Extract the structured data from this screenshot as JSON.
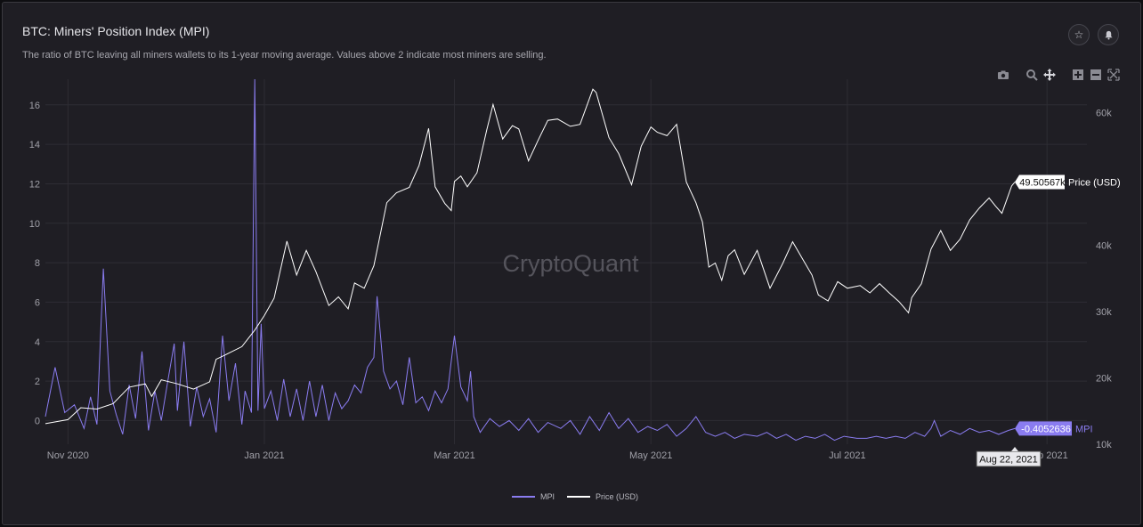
{
  "header": {
    "title": "BTC: Miners' Position Index (MPI)",
    "subtitle": "The ratio of BTC leaving all miners wallets to its 1-year moving average. Values above 2 indicate most miners are selling.",
    "favorite_icon": "☆",
    "alert_icon": "🔔"
  },
  "toolbar": {
    "icons": [
      "camera-icon",
      "zoom-icon",
      "pan-icon",
      "zoom-in-icon",
      "zoom-out-icon",
      "autoscale-icon"
    ]
  },
  "watermark": "CryptoQuant",
  "colors": {
    "mpi": "#8a7cf0",
    "price": "#ffffff",
    "background": "#1f1e24",
    "grid": "#2e2d34",
    "axis_text": "#a0a0a8"
  },
  "chart_data": {
    "type": "line",
    "x_start": "2020-10-25",
    "x_end": "2021-08-22",
    "x_ticks": [
      {
        "date": "2020-11-01",
        "label": "Nov 2020"
      },
      {
        "date": "2021-01-01",
        "label": "Jan 2021"
      },
      {
        "date": "2021-03-01",
        "label": "Mar 2021"
      },
      {
        "date": "2021-05-01",
        "label": "May 2021"
      },
      {
        "date": "2021-07-01",
        "label": "Jul 2021"
      },
      {
        "date": "2021-09-01",
        "label": "Sep 2021"
      }
    ],
    "y_left": {
      "min": -1.2,
      "max": 17.3,
      "ticks": [
        0,
        2,
        4,
        6,
        8,
        10,
        12,
        14,
        16
      ]
    },
    "y_right": {
      "min": 10000,
      "max": 65000,
      "ticks": [
        10000,
        20000,
        30000,
        40000,
        60000
      ],
      "tick_labels": [
        "10k",
        "20k",
        "30k",
        "40k",
        "60k"
      ]
    },
    "series": [
      {
        "name": "MPI",
        "axis": "left",
        "points": [
          [
            "2020-10-25",
            0.2
          ],
          [
            "2020-10-28",
            2.7
          ],
          [
            "2020-10-31",
            0.4
          ],
          [
            "2020-11-03",
            0.8
          ],
          [
            "2020-11-06",
            -0.4
          ],
          [
            "2020-11-08",
            1.2
          ],
          [
            "2020-11-10",
            -0.2
          ],
          [
            "2020-11-12",
            7.7
          ],
          [
            "2020-11-14",
            1.5
          ],
          [
            "2020-11-16",
            0.3
          ],
          [
            "2020-11-18",
            -0.7
          ],
          [
            "2020-11-20",
            1.8
          ],
          [
            "2020-11-22",
            0.1
          ],
          [
            "2020-11-24",
            3.5
          ],
          [
            "2020-11-26",
            -0.5
          ],
          [
            "2020-11-28",
            1.5
          ],
          [
            "2020-11-30",
            0.0
          ],
          [
            "2020-12-02",
            2.0
          ],
          [
            "2020-12-04",
            3.9
          ],
          [
            "2020-12-05",
            0.5
          ],
          [
            "2020-12-07",
            4.0
          ],
          [
            "2020-12-09",
            -0.3
          ],
          [
            "2020-12-11",
            1.7
          ],
          [
            "2020-12-13",
            0.2
          ],
          [
            "2020-12-15",
            1.1
          ],
          [
            "2020-12-17",
            -0.6
          ],
          [
            "2020-12-19",
            4.3
          ],
          [
            "2020-12-21",
            1.0
          ],
          [
            "2020-12-23",
            2.9
          ],
          [
            "2020-12-25",
            -0.2
          ],
          [
            "2020-12-26",
            1.5
          ],
          [
            "2020-12-28",
            0.4
          ],
          [
            "2020-12-29",
            17.3
          ],
          [
            "2020-12-30",
            0.5
          ],
          [
            "2020-12-31",
            4.9
          ],
          [
            "2021-01-01",
            0.6
          ],
          [
            "2021-01-03",
            1.5
          ],
          [
            "2021-01-05",
            0.0
          ],
          [
            "2021-01-07",
            2.1
          ],
          [
            "2021-01-09",
            0.2
          ],
          [
            "2021-01-11",
            1.6
          ],
          [
            "2021-01-13",
            0.0
          ],
          [
            "2021-01-15",
            2.0
          ],
          [
            "2021-01-17",
            0.2
          ],
          [
            "2021-01-19",
            1.8
          ],
          [
            "2021-01-21",
            0.0
          ],
          [
            "2021-01-23",
            1.4
          ],
          [
            "2021-01-25",
            0.6
          ],
          [
            "2021-01-27",
            1.0
          ],
          [
            "2021-01-29",
            1.8
          ],
          [
            "2021-01-31",
            1.4
          ],
          [
            "2021-02-02",
            2.7
          ],
          [
            "2021-02-04",
            3.2
          ],
          [
            "2021-02-05",
            6.3
          ],
          [
            "2021-02-07",
            2.5
          ],
          [
            "2021-02-09",
            1.6
          ],
          [
            "2021-02-11",
            2.0
          ],
          [
            "2021-02-13",
            0.8
          ],
          [
            "2021-02-15",
            3.2
          ],
          [
            "2021-02-17",
            0.9
          ],
          [
            "2021-02-19",
            1.2
          ],
          [
            "2021-02-21",
            0.5
          ],
          [
            "2021-02-23",
            1.5
          ],
          [
            "2021-02-25",
            0.9
          ],
          [
            "2021-02-27",
            1.6
          ],
          [
            "2021-02-28",
            3.0
          ],
          [
            "2021-03-01",
            4.3
          ],
          [
            "2021-03-03",
            1.7
          ],
          [
            "2021-03-05",
            1.0
          ],
          [
            "2021-03-06",
            2.5
          ],
          [
            "2021-03-07",
            0.2
          ],
          [
            "2021-03-09",
            -0.6
          ],
          [
            "2021-03-12",
            0.1
          ],
          [
            "2021-03-15",
            -0.3
          ],
          [
            "2021-03-18",
            0.0
          ],
          [
            "2021-03-21",
            -0.5
          ],
          [
            "2021-03-24",
            0.1
          ],
          [
            "2021-03-27",
            -0.6
          ],
          [
            "2021-03-30",
            -0.1
          ],
          [
            "2021-04-03",
            -0.4
          ],
          [
            "2021-04-06",
            0.0
          ],
          [
            "2021-04-09",
            -0.7
          ],
          [
            "2021-04-12",
            0.2
          ],
          [
            "2021-04-15",
            -0.5
          ],
          [
            "2021-04-18",
            0.4
          ],
          [
            "2021-04-21",
            -0.4
          ],
          [
            "2021-04-24",
            0.1
          ],
          [
            "2021-04-27",
            -0.6
          ],
          [
            "2021-04-30",
            -0.3
          ],
          [
            "2021-05-03",
            -0.5
          ],
          [
            "2021-05-06",
            -0.2
          ],
          [
            "2021-05-09",
            -0.8
          ],
          [
            "2021-05-12",
            -0.4
          ],
          [
            "2021-05-15",
            0.2
          ],
          [
            "2021-05-18",
            -0.6
          ],
          [
            "2021-05-21",
            -0.8
          ],
          [
            "2021-05-24",
            -0.6
          ],
          [
            "2021-05-27",
            -0.9
          ],
          [
            "2021-05-30",
            -0.7
          ],
          [
            "2021-06-03",
            -0.8
          ],
          [
            "2021-06-06",
            -0.6
          ],
          [
            "2021-06-09",
            -0.9
          ],
          [
            "2021-06-12",
            -0.7
          ],
          [
            "2021-06-15",
            -1.0
          ],
          [
            "2021-06-18",
            -0.8
          ],
          [
            "2021-06-21",
            -0.9
          ],
          [
            "2021-06-24",
            -0.7
          ],
          [
            "2021-06-27",
            -1.0
          ],
          [
            "2021-06-30",
            -0.8
          ],
          [
            "2021-07-04",
            -0.9
          ],
          [
            "2021-07-07",
            -0.9
          ],
          [
            "2021-07-10",
            -0.8
          ],
          [
            "2021-07-13",
            -0.9
          ],
          [
            "2021-07-16",
            -0.8
          ],
          [
            "2021-07-19",
            -0.9
          ],
          [
            "2021-07-22",
            -0.6
          ],
          [
            "2021-07-25",
            -0.8
          ],
          [
            "2021-07-27",
            -0.4
          ],
          [
            "2021-07-28",
            0.0
          ],
          [
            "2021-07-30",
            -0.8
          ],
          [
            "2021-08-02",
            -0.5
          ],
          [
            "2021-08-05",
            -0.7
          ],
          [
            "2021-08-08",
            -0.4
          ],
          [
            "2021-08-11",
            -0.6
          ],
          [
            "2021-08-14",
            -0.5
          ],
          [
            "2021-08-17",
            -0.7
          ],
          [
            "2021-08-20",
            -0.5
          ],
          [
            "2021-08-22",
            -0.405
          ]
        ],
        "last_value_label": "-0.4052636"
      },
      {
        "name": "Price (USD)",
        "axis": "right",
        "points": [
          [
            "2020-10-25",
            13100
          ],
          [
            "2020-11-01",
            13700
          ],
          [
            "2020-11-05",
            15500
          ],
          [
            "2020-11-10",
            15300
          ],
          [
            "2020-11-15",
            16100
          ],
          [
            "2020-11-20",
            18600
          ],
          [
            "2020-11-25",
            19100
          ],
          [
            "2020-11-27",
            17200
          ],
          [
            "2020-11-30",
            19700
          ],
          [
            "2020-12-05",
            19100
          ],
          [
            "2020-12-10",
            18300
          ],
          [
            "2020-12-15",
            19400
          ],
          [
            "2020-12-17",
            22800
          ],
          [
            "2020-12-20",
            23500
          ],
          [
            "2020-12-25",
            24700
          ],
          [
            "2020-12-29",
            27200
          ],
          [
            "2021-01-01",
            29400
          ],
          [
            "2021-01-04",
            32000
          ],
          [
            "2021-01-08",
            40600
          ],
          [
            "2021-01-11",
            35500
          ],
          [
            "2021-01-14",
            39200
          ],
          [
            "2021-01-17",
            36000
          ],
          [
            "2021-01-21",
            30900
          ],
          [
            "2021-01-24",
            32200
          ],
          [
            "2021-01-27",
            30400
          ],
          [
            "2021-01-29",
            34300
          ],
          [
            "2021-02-01",
            33500
          ],
          [
            "2021-02-04",
            36900
          ],
          [
            "2021-02-08",
            46400
          ],
          [
            "2021-02-11",
            47900
          ],
          [
            "2021-02-15",
            48700
          ],
          [
            "2021-02-18",
            52000
          ],
          [
            "2021-02-21",
            57600
          ],
          [
            "2021-02-23",
            48800
          ],
          [
            "2021-02-26",
            46300
          ],
          [
            "2021-02-28",
            45200
          ],
          [
            "2021-03-01",
            49600
          ],
          [
            "2021-03-03",
            50400
          ],
          [
            "2021-03-05",
            48800
          ],
          [
            "2021-03-08",
            50900
          ],
          [
            "2021-03-11",
            57300
          ],
          [
            "2021-03-13",
            61200
          ],
          [
            "2021-03-16",
            56000
          ],
          [
            "2021-03-19",
            58000
          ],
          [
            "2021-03-21",
            57500
          ],
          [
            "2021-03-24",
            52700
          ],
          [
            "2021-03-27",
            55800
          ],
          [
            "2021-03-30",
            58800
          ],
          [
            "2021-04-02",
            59000
          ],
          [
            "2021-04-06",
            57900
          ],
          [
            "2021-04-09",
            58200
          ],
          [
            "2021-04-13",
            63500
          ],
          [
            "2021-04-14",
            63000
          ],
          [
            "2021-04-18",
            56200
          ],
          [
            "2021-04-21",
            53800
          ],
          [
            "2021-04-25",
            49100
          ],
          [
            "2021-04-28",
            54900
          ],
          [
            "2021-05-01",
            57800
          ],
          [
            "2021-05-03",
            57000
          ],
          [
            "2021-05-06",
            56500
          ],
          [
            "2021-05-09",
            58200
          ],
          [
            "2021-05-12",
            49500
          ],
          [
            "2021-05-15",
            46400
          ],
          [
            "2021-05-17",
            43500
          ],
          [
            "2021-05-19",
            36700
          ],
          [
            "2021-05-21",
            37300
          ],
          [
            "2021-05-23",
            34700
          ],
          [
            "2021-05-25",
            38400
          ],
          [
            "2021-05-27",
            39300
          ],
          [
            "2021-05-30",
            35600
          ],
          [
            "2021-06-03",
            39200
          ],
          [
            "2021-06-07",
            33500
          ],
          [
            "2021-06-11",
            37300
          ],
          [
            "2021-06-14",
            40500
          ],
          [
            "2021-06-17",
            38000
          ],
          [
            "2021-06-20",
            35500
          ],
          [
            "2021-06-22",
            32500
          ],
          [
            "2021-06-25",
            31600
          ],
          [
            "2021-06-28",
            34500
          ],
          [
            "2021-07-01",
            33500
          ],
          [
            "2021-07-05",
            33900
          ],
          [
            "2021-07-08",
            32800
          ],
          [
            "2021-07-11",
            34200
          ],
          [
            "2021-07-14",
            32800
          ],
          [
            "2021-07-17",
            31500
          ],
          [
            "2021-07-20",
            29800
          ],
          [
            "2021-07-21",
            32100
          ],
          [
            "2021-07-24",
            34200
          ],
          [
            "2021-07-27",
            39400
          ],
          [
            "2021-07-30",
            42200
          ],
          [
            "2021-08-02",
            39200
          ],
          [
            "2021-08-05",
            40900
          ],
          [
            "2021-08-08",
            43800
          ],
          [
            "2021-08-11",
            45600
          ],
          [
            "2021-08-14",
            47100
          ],
          [
            "2021-08-16",
            45900
          ],
          [
            "2021-08-18",
            44800
          ],
          [
            "2021-08-21",
            48900
          ],
          [
            "2021-08-22",
            49505.67
          ]
        ],
        "last_value_label": "49.50567k"
      }
    ],
    "hover_date_label": "Aug 22, 2021",
    "grid": true,
    "legend_position": "bottom-center"
  }
}
